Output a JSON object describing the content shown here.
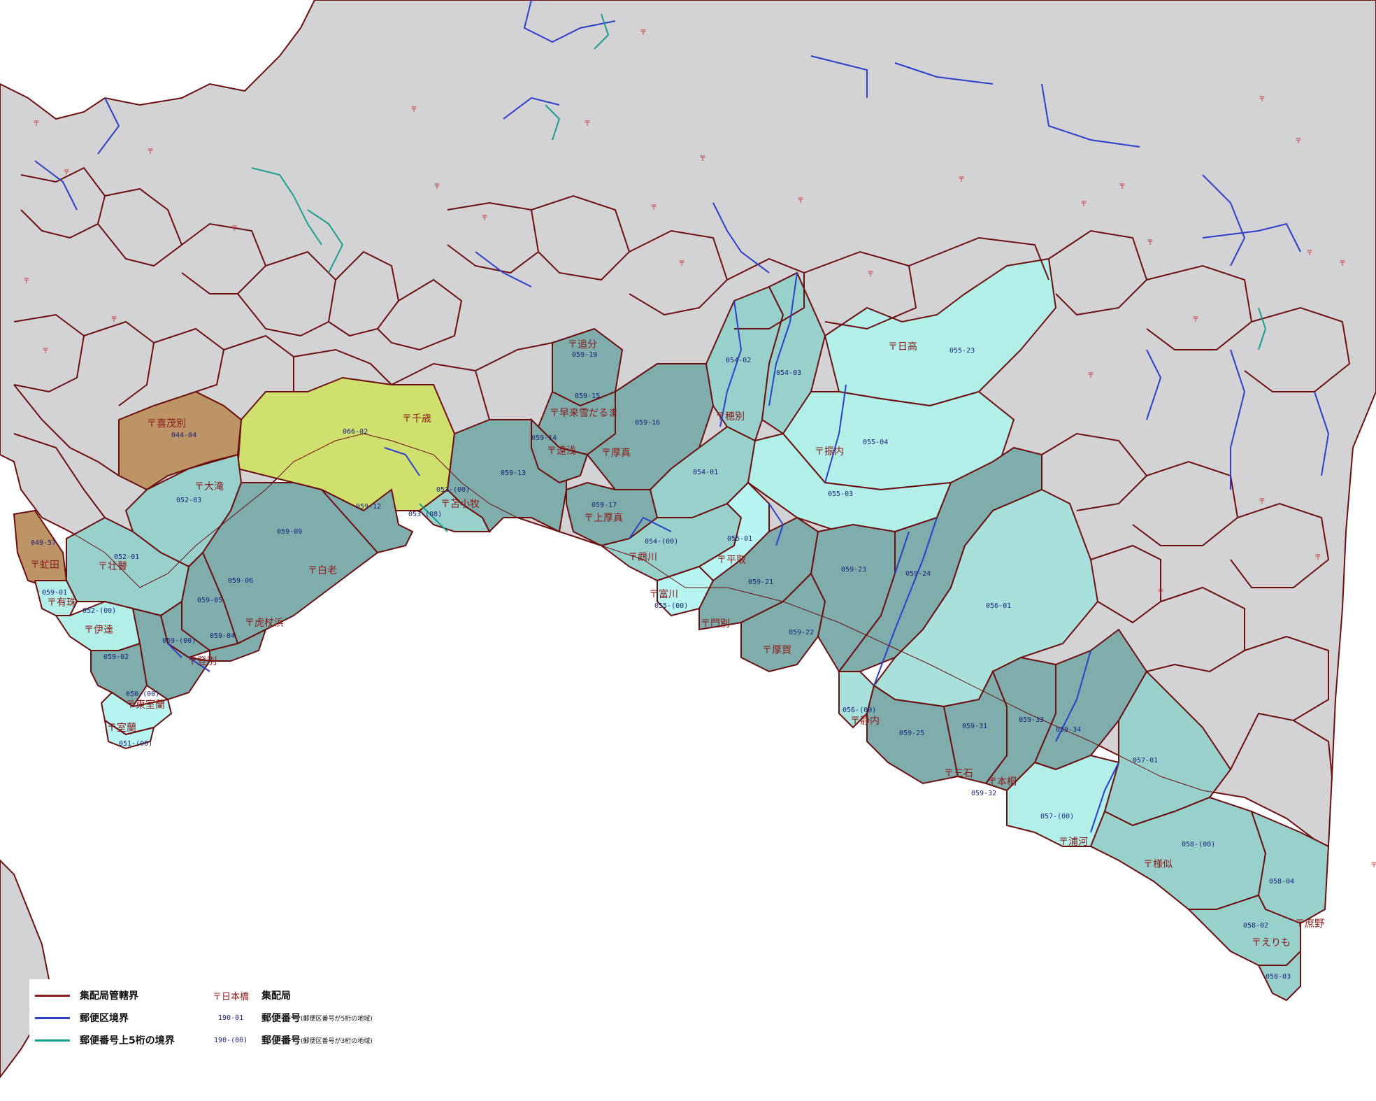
{
  "colors": {
    "land_default": "#d3d2d5",
    "water": "#ffffff",
    "yellow_green": "#cfe06e",
    "brown": "#bc9465",
    "teal_dark": "#7fadab",
    "teal_mid": "#98d0cb",
    "teal_light": "#b1efe8",
    "cyan_light": "#b6f5f2",
    "delivery_border": "#6b0f0f",
    "postal_border": "#2b3fc9",
    "five_digit_border": "#1a9e8e"
  },
  "legend": {
    "delivery_boundary": "集配局管轄界",
    "postal_area_boundary": "郵便区境界",
    "five_digit_boundary": "郵便番号上5桁の境界",
    "office_sample": "〒日本橋",
    "office_desc": "集配局",
    "code5_sample": "190-01",
    "code5_desc": "郵便番号",
    "code5_note": "(郵便区番号が5桁の地域)",
    "code3_sample": "190-(00)",
    "code3_desc": "郵便番号",
    "code3_note": "(郵便区番号が3桁の地域)"
  },
  "offices": [
    {
      "id": "chitose",
      "name": "千歳"
    },
    {
      "id": "kimobetsu",
      "name": "喜茂別"
    },
    {
      "id": "otaki",
      "name": "大滝"
    },
    {
      "id": "abuta",
      "name": "虻田"
    },
    {
      "id": "sobetsu",
      "name": "壮瞽"
    },
    {
      "id": "usu",
      "name": "有珠"
    },
    {
      "id": "date",
      "name": "伊達"
    },
    {
      "id": "shiraoi",
      "name": "白老"
    },
    {
      "id": "kojohama",
      "name": "虎杖浜"
    },
    {
      "id": "noboribetsu",
      "name": "登別"
    },
    {
      "id": "higashimuroran",
      "name": "東室蘭"
    },
    {
      "id": "muroran",
      "name": "室蘭"
    },
    {
      "id": "tomakomai",
      "name": "苫小牧"
    },
    {
      "id": "oiwake",
      "name": "追分"
    },
    {
      "id": "hayakita",
      "name": "早来雪だるま"
    },
    {
      "id": "toasa",
      "name": "遠浅"
    },
    {
      "id": "atsuma",
      "name": "厚真"
    },
    {
      "id": "kamiatsuma",
      "name": "上厚真"
    },
    {
      "id": "mukawa",
      "name": "鵡川"
    },
    {
      "id": "hobetsu",
      "name": "穂別"
    },
    {
      "id": "hidaka",
      "name": "日高"
    },
    {
      "id": "furenai",
      "name": "振内"
    },
    {
      "id": "biratori",
      "name": "平取"
    },
    {
      "id": "tomikawa",
      "name": "富川"
    },
    {
      "id": "monbetsu",
      "name": "門別"
    },
    {
      "id": "atsuga",
      "name": "厚賀"
    },
    {
      "id": "shizunai",
      "name": "静内"
    },
    {
      "id": "mitsuishi",
      "name": "三石"
    },
    {
      "id": "honkiri",
      "name": "本桐"
    },
    {
      "id": "urakawa",
      "name": "浦河"
    },
    {
      "id": "samani",
      "name": "様似"
    },
    {
      "id": "shoya",
      "name": "庶野"
    },
    {
      "id": "erimo",
      "name": "えりも"
    }
  ],
  "codes": [
    "066-02",
    "044-04",
    "052-03",
    "049-57",
    "052-01",
    "059-01",
    "052-(00)",
    "059-09",
    "059-06",
    "059-05",
    "059-04",
    "059-(00)",
    "059-02",
    "050-(00)",
    "051-(00)",
    "059-12",
    "053-(00)",
    "053-(08)",
    "059-13",
    "059-19",
    "059-15",
    "059-14",
    "059-16",
    "059-17",
    "054-01",
    "054-02",
    "054-03",
    "054-(00)",
    "055-01",
    "055-(00)",
    "055-23",
    "055-04",
    "055-03",
    "059-21",
    "059-22",
    "059-23",
    "059-24",
    "056-01",
    "056-(00)",
    "059-25",
    "059-31",
    "059-32",
    "059-33",
    "059-34",
    "057-01",
    "057-(00)",
    "058-(00)",
    "058-04",
    "058-02",
    "058-03"
  ]
}
